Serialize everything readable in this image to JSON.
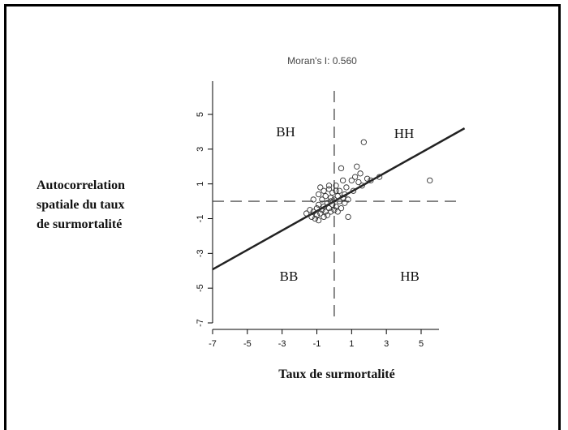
{
  "chart_data": {
    "type": "scatter",
    "title": "Moran's I: 0.560",
    "xlabel": "Taux de surmortalité",
    "ylabel_lines": [
      "Autocorrelation",
      "spatiale du taux",
      "de surmortalité"
    ],
    "xlim": [
      -7,
      7
    ],
    "ylim": [
      -7,
      7
    ],
    "x_ticks": [
      "-7",
      "-5",
      "-3",
      "-1",
      "1",
      "3",
      "5"
    ],
    "y_ticks": [
      "-7",
      "-5",
      "-3",
      "-1",
      "1",
      "3",
      "5"
    ],
    "x_tick_values": [
      -7,
      -5,
      -3,
      -1,
      1,
      3,
      5
    ],
    "y_tick_values": [
      -7,
      -5,
      -3,
      -1,
      1,
      3,
      5
    ],
    "quadrant_labels": [
      "BH",
      "HH",
      "BB",
      "HB"
    ],
    "reference_lines": {
      "x": 0,
      "y": 0,
      "style": "dashed"
    },
    "regression_line": {
      "slope": 0.56,
      "intercept": 0
    },
    "points": [
      [
        -1.6,
        -0.7
      ],
      [
        -1.4,
        -0.5
      ],
      [
        -1.3,
        -0.9
      ],
      [
        -1.2,
        -0.6
      ],
      [
        -1.1,
        -1.0
      ],
      [
        -1.0,
        -0.4
      ],
      [
        -1.0,
        -0.8
      ],
      [
        -0.9,
        -1.1
      ],
      [
        -0.9,
        -0.2
      ],
      [
        -0.8,
        0.8
      ],
      [
        -0.8,
        -0.7
      ],
      [
        -0.7,
        -0.5
      ],
      [
        -0.7,
        0.1
      ],
      [
        -0.6,
        -0.9
      ],
      [
        -0.6,
        -0.3
      ],
      [
        -0.5,
        0.3
      ],
      [
        -0.5,
        -0.6
      ],
      [
        -0.4,
        -0.1
      ],
      [
        -0.4,
        -0.8
      ],
      [
        -0.3,
        0.7
      ],
      [
        -0.3,
        -0.4
      ],
      [
        -0.2,
        0.2
      ],
      [
        -0.2,
        -0.6
      ],
      [
        -0.1,
        -0.2
      ],
      [
        -0.1,
        0.5
      ],
      [
        0.0,
        -0.5
      ],
      [
        0.0,
        0.1
      ],
      [
        0.1,
        0.9
      ],
      [
        0.1,
        -0.3
      ],
      [
        0.2,
        0.3
      ],
      [
        0.2,
        -0.6
      ],
      [
        0.3,
        0.0
      ],
      [
        0.3,
        0.6
      ],
      [
        0.4,
        -0.4
      ],
      [
        0.4,
        1.9
      ],
      [
        0.5,
        0.2
      ],
      [
        0.5,
        1.2
      ],
      [
        0.6,
        -0.1
      ],
      [
        0.6,
        0.4
      ],
      [
        0.7,
        0.8
      ],
      [
        0.8,
        -0.9
      ],
      [
        0.8,
        0.1
      ],
      [
        1.0,
        1.2
      ],
      [
        1.1,
        0.6
      ],
      [
        1.2,
        1.4
      ],
      [
        1.3,
        2.0
      ],
      [
        1.4,
        1.1
      ],
      [
        1.5,
        1.6
      ],
      [
        1.6,
        0.9
      ],
      [
        1.7,
        3.4
      ],
      [
        1.9,
        1.3
      ],
      [
        2.1,
        1.2
      ],
      [
        2.6,
        1.4
      ],
      [
        5.5,
        1.2
      ],
      [
        -0.9,
        0.4
      ],
      [
        -0.6,
        0.6
      ],
      [
        -0.3,
        0.9
      ],
      [
        0.1,
        0.6
      ],
      [
        -0.2,
        0.0
      ],
      [
        -1.2,
        0.1
      ]
    ]
  }
}
